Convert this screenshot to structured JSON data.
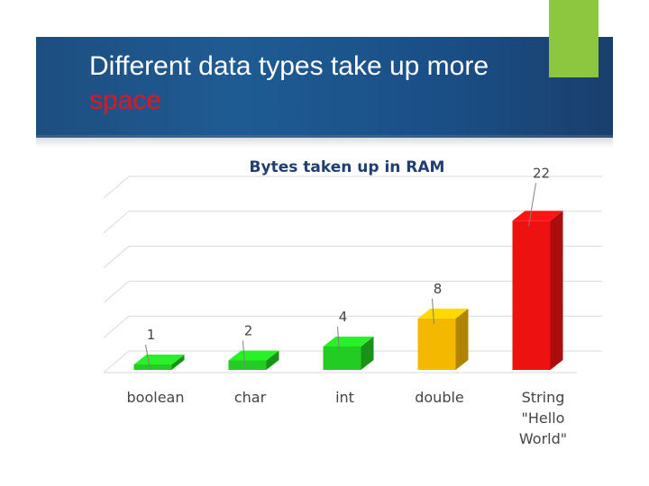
{
  "slide": {
    "title_main": "Different data types take up more",
    "title_accent": "space"
  },
  "colors": {
    "header_blue": "#1f5b93",
    "accent_green": "#8dc63f",
    "title_accent_red": "#e8141b",
    "chart_title": "#1f3f73"
  },
  "chart_data": {
    "type": "bar",
    "style": "3d-column",
    "title": "Bytes taken up in RAM",
    "categories": [
      "boolean",
      "char",
      "int",
      "double",
      "String \"Hello World\""
    ],
    "category_lines": [
      [
        "boolean"
      ],
      [
        "char"
      ],
      [
        "int"
      ],
      [
        "double"
      ],
      [
        "String",
        "\"Hello",
        "World\""
      ]
    ],
    "values": [
      1,
      2,
      4,
      8,
      22
    ],
    "data_labels": [
      "1",
      "2",
      "4",
      "8",
      "22"
    ],
    "bar_colors": [
      "#22cc22",
      "#22cc22",
      "#22cc22",
      "#f5b800",
      "#ee1111"
    ],
    "ylim": [
      0,
      25
    ],
    "grid": true,
    "legend": "none",
    "xlabel": "",
    "ylabel": ""
  }
}
